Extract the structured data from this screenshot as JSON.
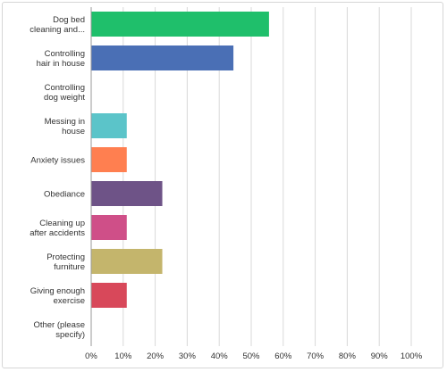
{
  "chart_data": {
    "type": "bar",
    "orientation": "horizontal",
    "categories": [
      [
        "Dog bed",
        "cleaning and..."
      ],
      [
        "Controlling",
        "hair in house"
      ],
      [
        "Controlling",
        "dog weight"
      ],
      [
        "Messing in",
        "house"
      ],
      [
        "Anxiety issues"
      ],
      [
        "Obediance"
      ],
      [
        "Cleaning up",
        "after accidents"
      ],
      [
        "Protecting",
        "furniture"
      ],
      [
        "Giving enough",
        "exercise"
      ],
      [
        "Other (please",
        "specify)"
      ]
    ],
    "values": [
      55.56,
      44.44,
      0,
      11.11,
      11.11,
      22.22,
      11.11,
      22.22,
      11.11,
      0
    ],
    "colors": [
      "#1fbf6b",
      "#4a6fb5",
      "#f2b731",
      "#5bc4c9",
      "#ff7f50",
      "#6e5387",
      "#cf4f88",
      "#c4b56c",
      "#d8485a",
      "#999999"
    ],
    "xlim": [
      0,
      100
    ],
    "xticks": [
      "0%",
      "10%",
      "20%",
      "30%",
      "40%",
      "50%",
      "60%",
      "70%",
      "80%",
      "90%",
      "100%"
    ],
    "grid": true
  }
}
